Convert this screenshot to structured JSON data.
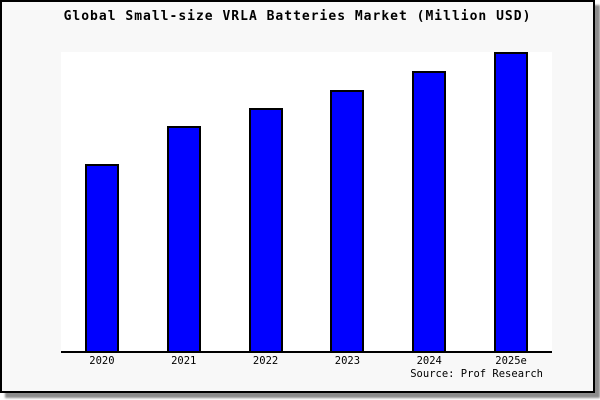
{
  "title": "Global Small-size VRLA Batteries Market (Million USD)",
  "source_credit": "Source: Prof Research",
  "chart_data": {
    "type": "bar",
    "title": "Global Small-size VRLA Batteries Market (Million USD)",
    "categories": [
      "2020",
      "2021",
      "2022",
      "2023",
      "2024",
      "2025e"
    ],
    "values": [
      62.5,
      75.3,
      81.3,
      87.3,
      93.6,
      100
    ],
    "note": "No y-axis scale or value labels are shown in the image; values are relative bar heights expressed as a percentage of the tallest (2025e) bar",
    "xlabel": "",
    "ylabel": "",
    "ylim": [
      0,
      100
    ],
    "grid": false,
    "legend": null,
    "bar_color": "#0000ff",
    "bar_edge_color": "#000000"
  },
  "colors": {
    "figure_background": "#f8f8f8",
    "plot_background": "#ffffff",
    "bar_fill": "#0000ff",
    "bar_edge": "#000000",
    "frame_border": "#000000",
    "drop_shadow": "#8c8c8c",
    "text": "#000000"
  }
}
